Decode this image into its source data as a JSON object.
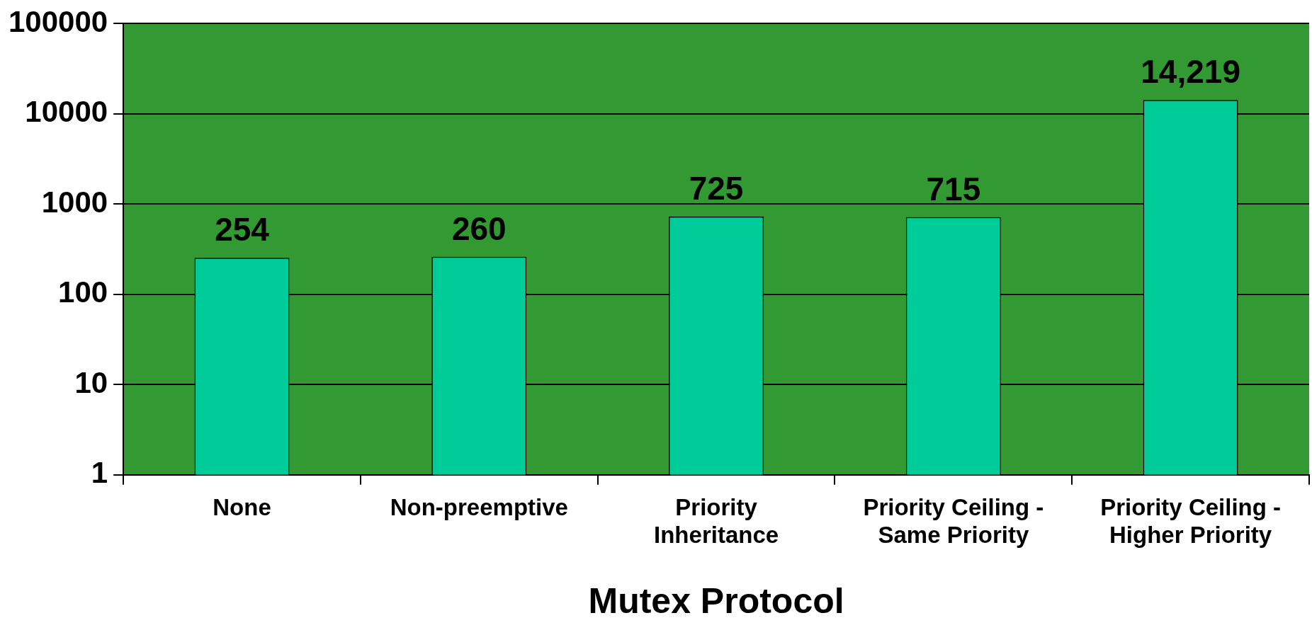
{
  "chart_data": {
    "type": "bar",
    "xlabel": "Mutex Protocol",
    "categories": [
      "None",
      "Non-preemptive",
      "Priority Inheritance",
      "Priority Ceiling - Same Priority",
      "Priority Ceiling - Higher Priority"
    ],
    "values": [
      254,
      260,
      725,
      715,
      14219
    ],
    "value_labels": [
      "254",
      "260",
      "725",
      "715",
      "14,219"
    ],
    "color": "#00cc99",
    "log": true,
    "ylim": [
      1,
      100000
    ],
    "yticks": [
      1,
      10,
      100,
      1000,
      10000,
      100000
    ],
    "grid": "y",
    "legend": false
  }
}
